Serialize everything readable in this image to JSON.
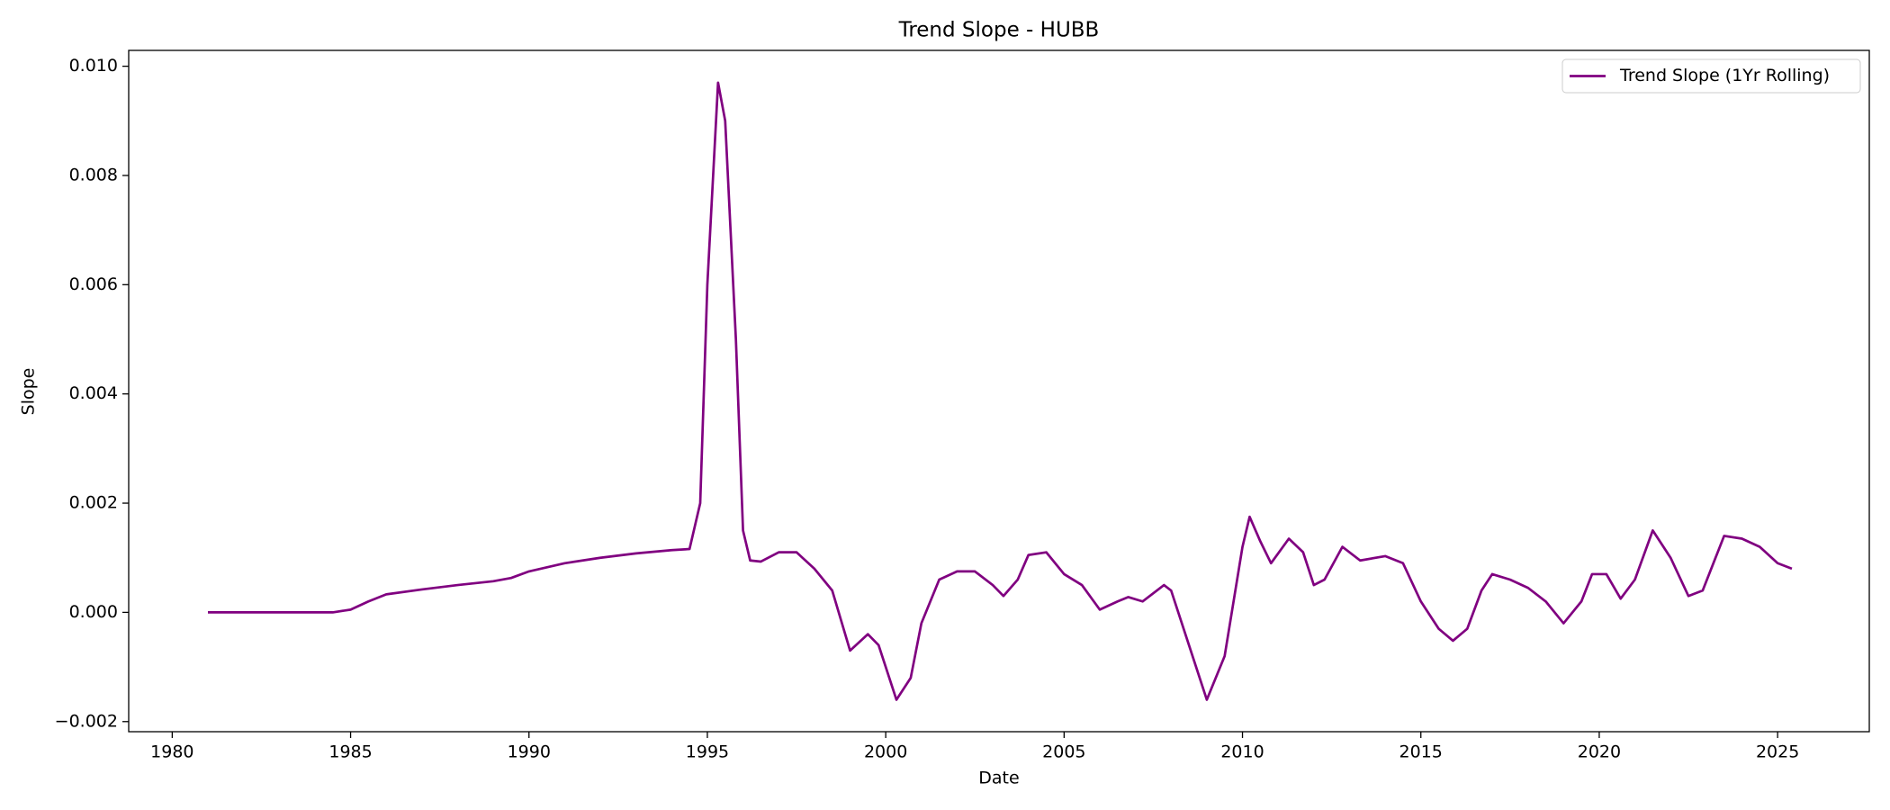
{
  "chart_data": {
    "type": "line",
    "title": "Trend Slope - HUBB",
    "x_label": "Date",
    "y_label": "Slope",
    "x": [
      1981.0,
      1984.5,
      1985.0,
      1985.5,
      1986.0,
      1987.0,
      1988.0,
      1989.0,
      1989.5,
      1990.0,
      1991.0,
      1992.0,
      1993.0,
      1994.0,
      1994.5,
      1994.8,
      1995.0,
      1995.3,
      1995.5,
      1995.8,
      1996.0,
      1996.2,
      1996.5,
      1997.0,
      1997.5,
      1998.0,
      1998.5,
      1999.0,
      1999.5,
      1999.8,
      2000.3,
      2000.7,
      2001.0,
      2001.5,
      2002.0,
      2002.5,
      2003.0,
      2003.3,
      2003.7,
      2004.0,
      2004.5,
      2005.0,
      2005.5,
      2006.0,
      2006.5,
      2006.8,
      2007.2,
      2007.8,
      2008.0,
      2008.5,
      2009.0,
      2009.5,
      2010.0,
      2010.2,
      2010.5,
      2010.8,
      2011.3,
      2011.7,
      2012.0,
      2012.3,
      2012.8,
      2013.3,
      2014.0,
      2014.5,
      2015.0,
      2015.5,
      2015.9,
      2016.3,
      2016.7,
      2017.0,
      2017.5,
      2018.0,
      2018.5,
      2019.0,
      2019.5,
      2019.8,
      2020.2,
      2020.6,
      2021.0,
      2021.5,
      2022.0,
      2022.5,
      2022.9,
      2023.5,
      2024.0,
      2024.5,
      2025.0,
      2025.4
    ],
    "series": [
      {
        "name": "Trend Slope (1Yr Rolling)",
        "color": "#800080",
        "values": [
          0,
          0,
          5e-05,
          0.0002,
          0.00033,
          0.00042,
          0.0005,
          0.00057,
          0.00063,
          0.00075,
          0.0009,
          0.001,
          0.00108,
          0.00114,
          0.00116,
          0.002,
          0.006,
          0.0097,
          0.009,
          0.005,
          0.0015,
          0.00095,
          0.00093,
          0.0011,
          0.0011,
          0.0008,
          0.0004,
          -0.0007,
          -0.0004,
          -0.0006,
          -0.0016,
          -0.0012,
          -0.0002,
          0.0006,
          0.00075,
          0.00075,
          0.0005,
          0.0003,
          0.0006,
          0.00105,
          0.0011,
          0.0007,
          0.0005,
          5e-05,
          0.0002,
          0.00028,
          0.0002,
          0.0005,
          0.0004,
          -0.0006,
          -0.0016,
          -0.0008,
          0.0012,
          0.00175,
          0.0013,
          0.0009,
          0.00135,
          0.0011,
          0.0005,
          0.0006,
          0.0012,
          0.00095,
          0.00103,
          0.0009,
          0.0002,
          -0.0003,
          -0.00052,
          -0.0003,
          0.0004,
          0.0007,
          0.0006,
          0.00045,
          0.0002,
          -0.0002,
          0.0002,
          0.0007,
          0.0007,
          0.00025,
          0.0006,
          0.0015,
          0.001,
          0.0003,
          0.0004,
          0.0014,
          0.00135,
          0.0012,
          0.0009,
          0.0008
        ]
      }
    ],
    "xlim": [
      1978.78,
      2027.57
    ],
    "xticks": [
      1980,
      1985,
      1990,
      1995,
      2000,
      2005,
      2010,
      2015,
      2020,
      2025
    ],
    "ylim": [
      -0.002185,
      0.01029
    ],
    "yticks": [
      {
        "value": -0.002,
        "label": "−0.002"
      },
      {
        "value": 0,
        "label": "0.000"
      },
      {
        "value": 0.002,
        "label": "0.002"
      },
      {
        "value": 0.004,
        "label": "0.004"
      },
      {
        "value": 0.006,
        "label": "0.006"
      },
      {
        "value": 0.008,
        "label": "0.008"
      },
      {
        "value": 0.01,
        "label": "0.010"
      }
    ],
    "grid": false,
    "legend": "upper right"
  }
}
